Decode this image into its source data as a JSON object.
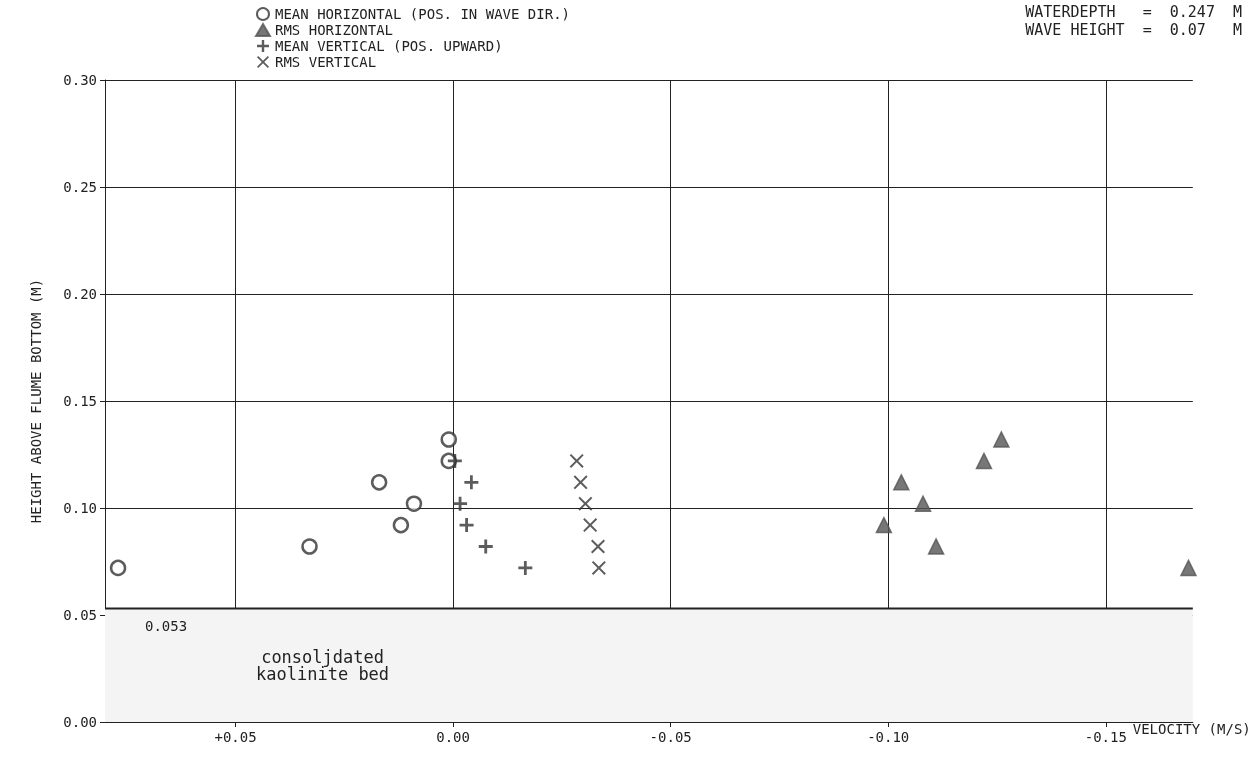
{
  "chart_data": {
    "type": "scatter",
    "xlabel": "VELOCITY (M/S)",
    "ylabel": "HEIGHT ABOVE FLUME BOTTOM (M)",
    "xlim": [
      0.08,
      -0.17
    ],
    "xticks": [
      {
        "value": 0.05,
        "label": "+0.05"
      },
      {
        "value": 0,
        "label": "0.00"
      },
      {
        "value": -0.05,
        "label": "-0.05"
      },
      {
        "value": -0.1,
        "label": "-0.10"
      },
      {
        "value": -0.15,
        "label": "-0.15"
      }
    ],
    "ylim": [
      0,
      0.3
    ],
    "yticks": [
      {
        "value": 0,
        "label": "0.00"
      },
      {
        "value": 0.05,
        "label": "0.05"
      },
      {
        "value": 0.1,
        "label": "0.10"
      },
      {
        "value": 0.15,
        "label": "0.15"
      },
      {
        "value": 0.2,
        "label": "0.20"
      },
      {
        "value": 0.25,
        "label": "0.25"
      },
      {
        "value": 0.3,
        "label": "0.30"
      }
    ],
    "grid": true,
    "legend": "top left",
    "series": [
      {
        "name": "MEAN HORIZONTAL (POS. IN WAVE DIR.)",
        "color": "#333333",
        "marker": "circle",
        "x": [
          0.077,
          0.033,
          0.017,
          0.012,
          0.009,
          0.001,
          0.001
        ],
        "values": [
          0.072,
          0.082,
          0.112,
          0.092,
          0.102,
          0.122,
          0.132
        ]
      },
      {
        "name": "RMS HORIZONTAL",
        "color": "#555555",
        "marker": "triangle",
        "x": [
          -0.126,
          -0.122,
          -0.103,
          -0.108,
          -0.099,
          -0.111,
          -0.169
        ],
        "values": [
          0.132,
          0.122,
          0.112,
          0.102,
          0.092,
          0.082,
          0.072
        ]
      },
      {
        "name": "MEAN VERTICAL (POS. UPWARD)",
        "color": "#333333",
        "marker": "cross",
        "x": [
          -0.0004,
          -0.0042,
          -0.0016,
          -0.0031,
          -0.0075,
          -0.0166
        ],
        "values": [
          0.122,
          0.112,
          0.102,
          0.092,
          0.082,
          0.072
        ]
      },
      {
        "name": "RMS VERTICAL",
        "color": "#333333",
        "marker": "x",
        "x": [
          -0.0284,
          -0.0293,
          -0.0304,
          -0.0315,
          -0.0333,
          -0.0335
        ],
        "values": [
          0.122,
          0.112,
          0.102,
          0.092,
          0.082,
          0.072
        ]
      }
    ],
    "ref_lines": [
      {
        "axis": "y",
        "value": 0.053,
        "label": "0.053",
        "color": "#222222"
      }
    ],
    "bands": [
      {
        "axis": "y",
        "from": 0,
        "to": 0.053,
        "label": "consoljdated\nkaolinite bed",
        "color": "#f4f4f4"
      }
    ],
    "annotations": [
      "WATERDEPTH   =  0.247  M",
      "WAVE HEIGHT  =  0.07   M"
    ]
  }
}
